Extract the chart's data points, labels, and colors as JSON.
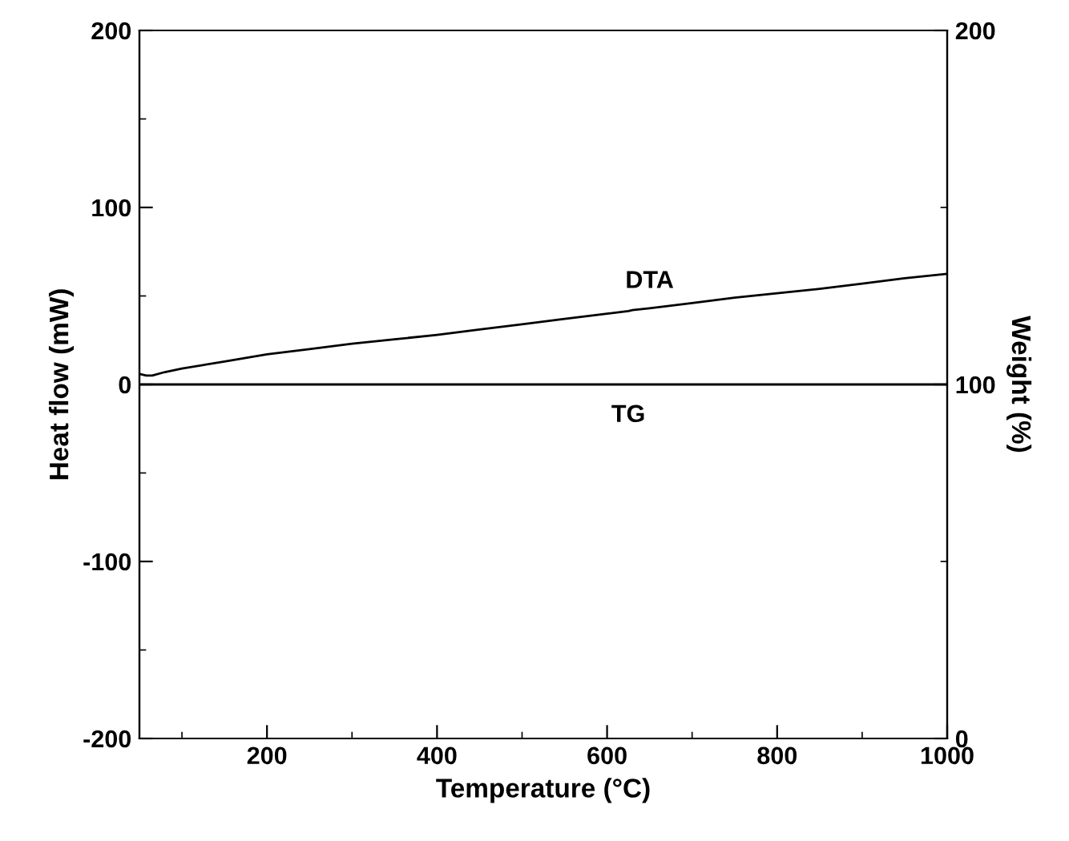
{
  "chart_data": {
    "type": "line",
    "xlabel": "Temperature (°C)",
    "ylabel": "Heat flow (mW)",
    "y2label": "Weight (%)",
    "x": [
      50,
      58,
      65,
      80,
      100,
      150,
      200,
      250,
      300,
      350,
      400,
      450,
      500,
      550,
      600,
      625,
      630,
      650,
      700,
      750,
      800,
      850,
      900,
      950,
      1000
    ],
    "series": [
      {
        "name": "DTA",
        "color": "#000000",
        "values": [
          6,
          5,
          5,
          7,
          9,
          13,
          17,
          20,
          23,
          25.5,
          28,
          31,
          34,
          37,
          40,
          41.5,
          42,
          43,
          46,
          49,
          51.5,
          54,
          57,
          60,
          62.5
        ]
      },
      {
        "name": "TG",
        "color": "#000000",
        "axis": "y2",
        "values": [
          100,
          100,
          100,
          100,
          100,
          100,
          100,
          100,
          100,
          100,
          100,
          100,
          100,
          100,
          100,
          100,
          100,
          100,
          100,
          100,
          100,
          100,
          100,
          100,
          100
        ]
      }
    ],
    "xlim": [
      50,
      1000
    ],
    "xticks": [
      200,
      400,
      600,
      800,
      1000
    ],
    "ylim": [
      -200,
      200
    ],
    "yticks": [
      -200,
      -100,
      0,
      100,
      200
    ],
    "y2lim": [
      0,
      200
    ],
    "y2ticks": [
      0,
      100,
      200
    ],
    "grid": false,
    "legend": false,
    "marker": "none",
    "line_style": "solid"
  }
}
